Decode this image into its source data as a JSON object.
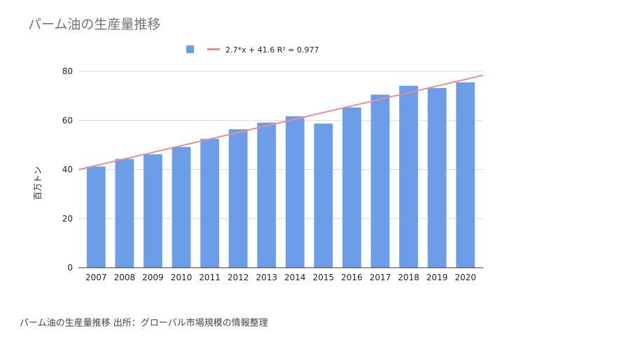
{
  "title": "パーム油の生産量推移",
  "caption": "パーム油の生産量推移 出所：グローバル市場規模の情報整理",
  "chart_data": {
    "type": "bar",
    "title": "パーム油の生産量推移",
    "xlabel": "",
    "ylabel": "百万トン",
    "categories": [
      "2007",
      "2008",
      "2009",
      "2010",
      "2011",
      "2012",
      "2013",
      "2014",
      "2015",
      "2016",
      "2017",
      "2018",
      "2019",
      "2020"
    ],
    "series": [
      {
        "values": [
          41.2,
          44.3,
          46.2,
          49.2,
          52.5,
          56.4,
          59.1,
          61.7,
          58.7,
          65.3,
          70.5,
          74.1,
          73.2,
          75.5
        ],
        "color": "#6c9de8"
      }
    ],
    "trendline": {
      "label": "2.7*x + 41.6 R² = 0.977",
      "slope": 2.7,
      "intercept": 41.6,
      "color": "#e88f8c"
    },
    "ylim": [
      0,
      80
    ],
    "yticks": [
      0,
      20,
      40,
      60,
      80
    ],
    "grid": true,
    "legend_position": "top"
  }
}
